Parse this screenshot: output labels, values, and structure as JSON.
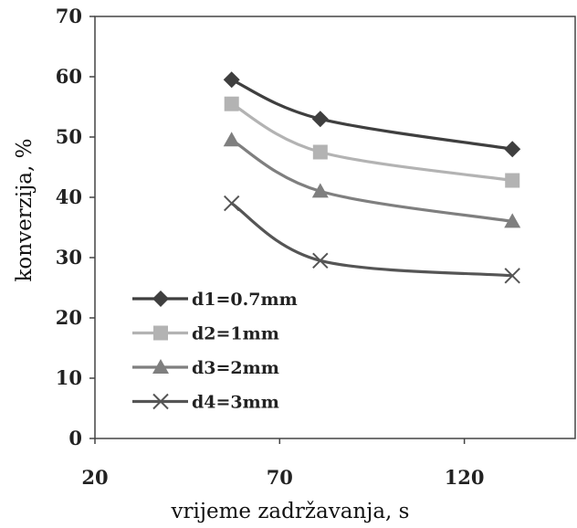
{
  "chart_data": {
    "type": "line",
    "xlabel": "vrijeme zadržavanja, s",
    "ylabel": "konverzija, %",
    "xlim": [
      20,
      150
    ],
    "ylim": [
      0,
      70
    ],
    "xticks": [
      20,
      70,
      120
    ],
    "yticks": [
      0,
      10,
      20,
      30,
      40,
      50,
      60,
      70
    ],
    "legend_position": "bottom-left",
    "series": [
      {
        "name": "d1=0.7mm",
        "marker": "diamond",
        "color": "#3f3f3f",
        "x": [
          57,
          81,
          133
        ],
        "y": [
          59.5,
          53,
          48
        ]
      },
      {
        "name": "d2=1mm",
        "marker": "square",
        "color": "#b3b3b3",
        "x": [
          57,
          81,
          133
        ],
        "y": [
          55.5,
          47.5,
          42.8
        ]
      },
      {
        "name": "d3=2mm",
        "marker": "triangle",
        "color": "#7f7f7f",
        "x": [
          57,
          81,
          133
        ],
        "y": [
          49.5,
          41,
          36
        ]
      },
      {
        "name": "d4=3mm",
        "marker": "x",
        "color": "#555555",
        "x": [
          57,
          81,
          133
        ],
        "y": [
          39,
          29.5,
          27
        ]
      }
    ]
  }
}
